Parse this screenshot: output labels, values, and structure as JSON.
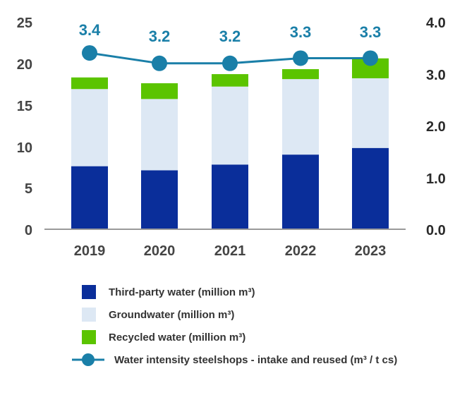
{
  "chart_data": {
    "type": "bar",
    "stacked": true,
    "categories": [
      "2019",
      "2020",
      "2021",
      "2022",
      "2023"
    ],
    "series": [
      {
        "name": "Third-party water (million m³)",
        "values": [
          7.6,
          7.1,
          7.8,
          9.0,
          9.8
        ],
        "color": "#0a2e9a"
      },
      {
        "name": "Groundwater (million m³)",
        "values": [
          9.3,
          8.6,
          9.4,
          9.1,
          8.4
        ],
        "color": "#dde8f4"
      },
      {
        "name": "Recycled water (million m³)",
        "values": [
          1.4,
          1.9,
          1.5,
          1.2,
          2.4
        ],
        "color": "#5bc400"
      }
    ],
    "line_series": {
      "name": "Water intensity steelshops - intake and reused (m³ / t cs)",
      "values": [
        3.4,
        3.2,
        3.2,
        3.3,
        3.3
      ],
      "labels": [
        "3.4",
        "3.2",
        "3.2",
        "3.3",
        "3.3"
      ],
      "color": "#1a7fa8",
      "axis": "right"
    },
    "y_left": {
      "min": 0,
      "max": 25,
      "ticks": [
        "0",
        "5",
        "10",
        "15",
        "20",
        "25"
      ]
    },
    "y_right": {
      "min": 0,
      "max": 4,
      "ticks": [
        "0.0",
        "1.0",
        "2.0",
        "3.0",
        "4.0"
      ]
    },
    "legend_position": "bottom"
  },
  "legend": {
    "items": [
      {
        "label": "Third-party water (million m³)",
        "kind": "box",
        "color": "#0a2e9a"
      },
      {
        "label": "Groundwater (million m³)",
        "kind": "box",
        "color": "#dde8f4"
      },
      {
        "label": "Recycled water (million m³)",
        "kind": "box",
        "color": "#5bc400"
      },
      {
        "label": "Water intensity steelshops - intake and reused (m³ / t cs)",
        "kind": "line",
        "color": "#1a7fa8"
      }
    ]
  }
}
